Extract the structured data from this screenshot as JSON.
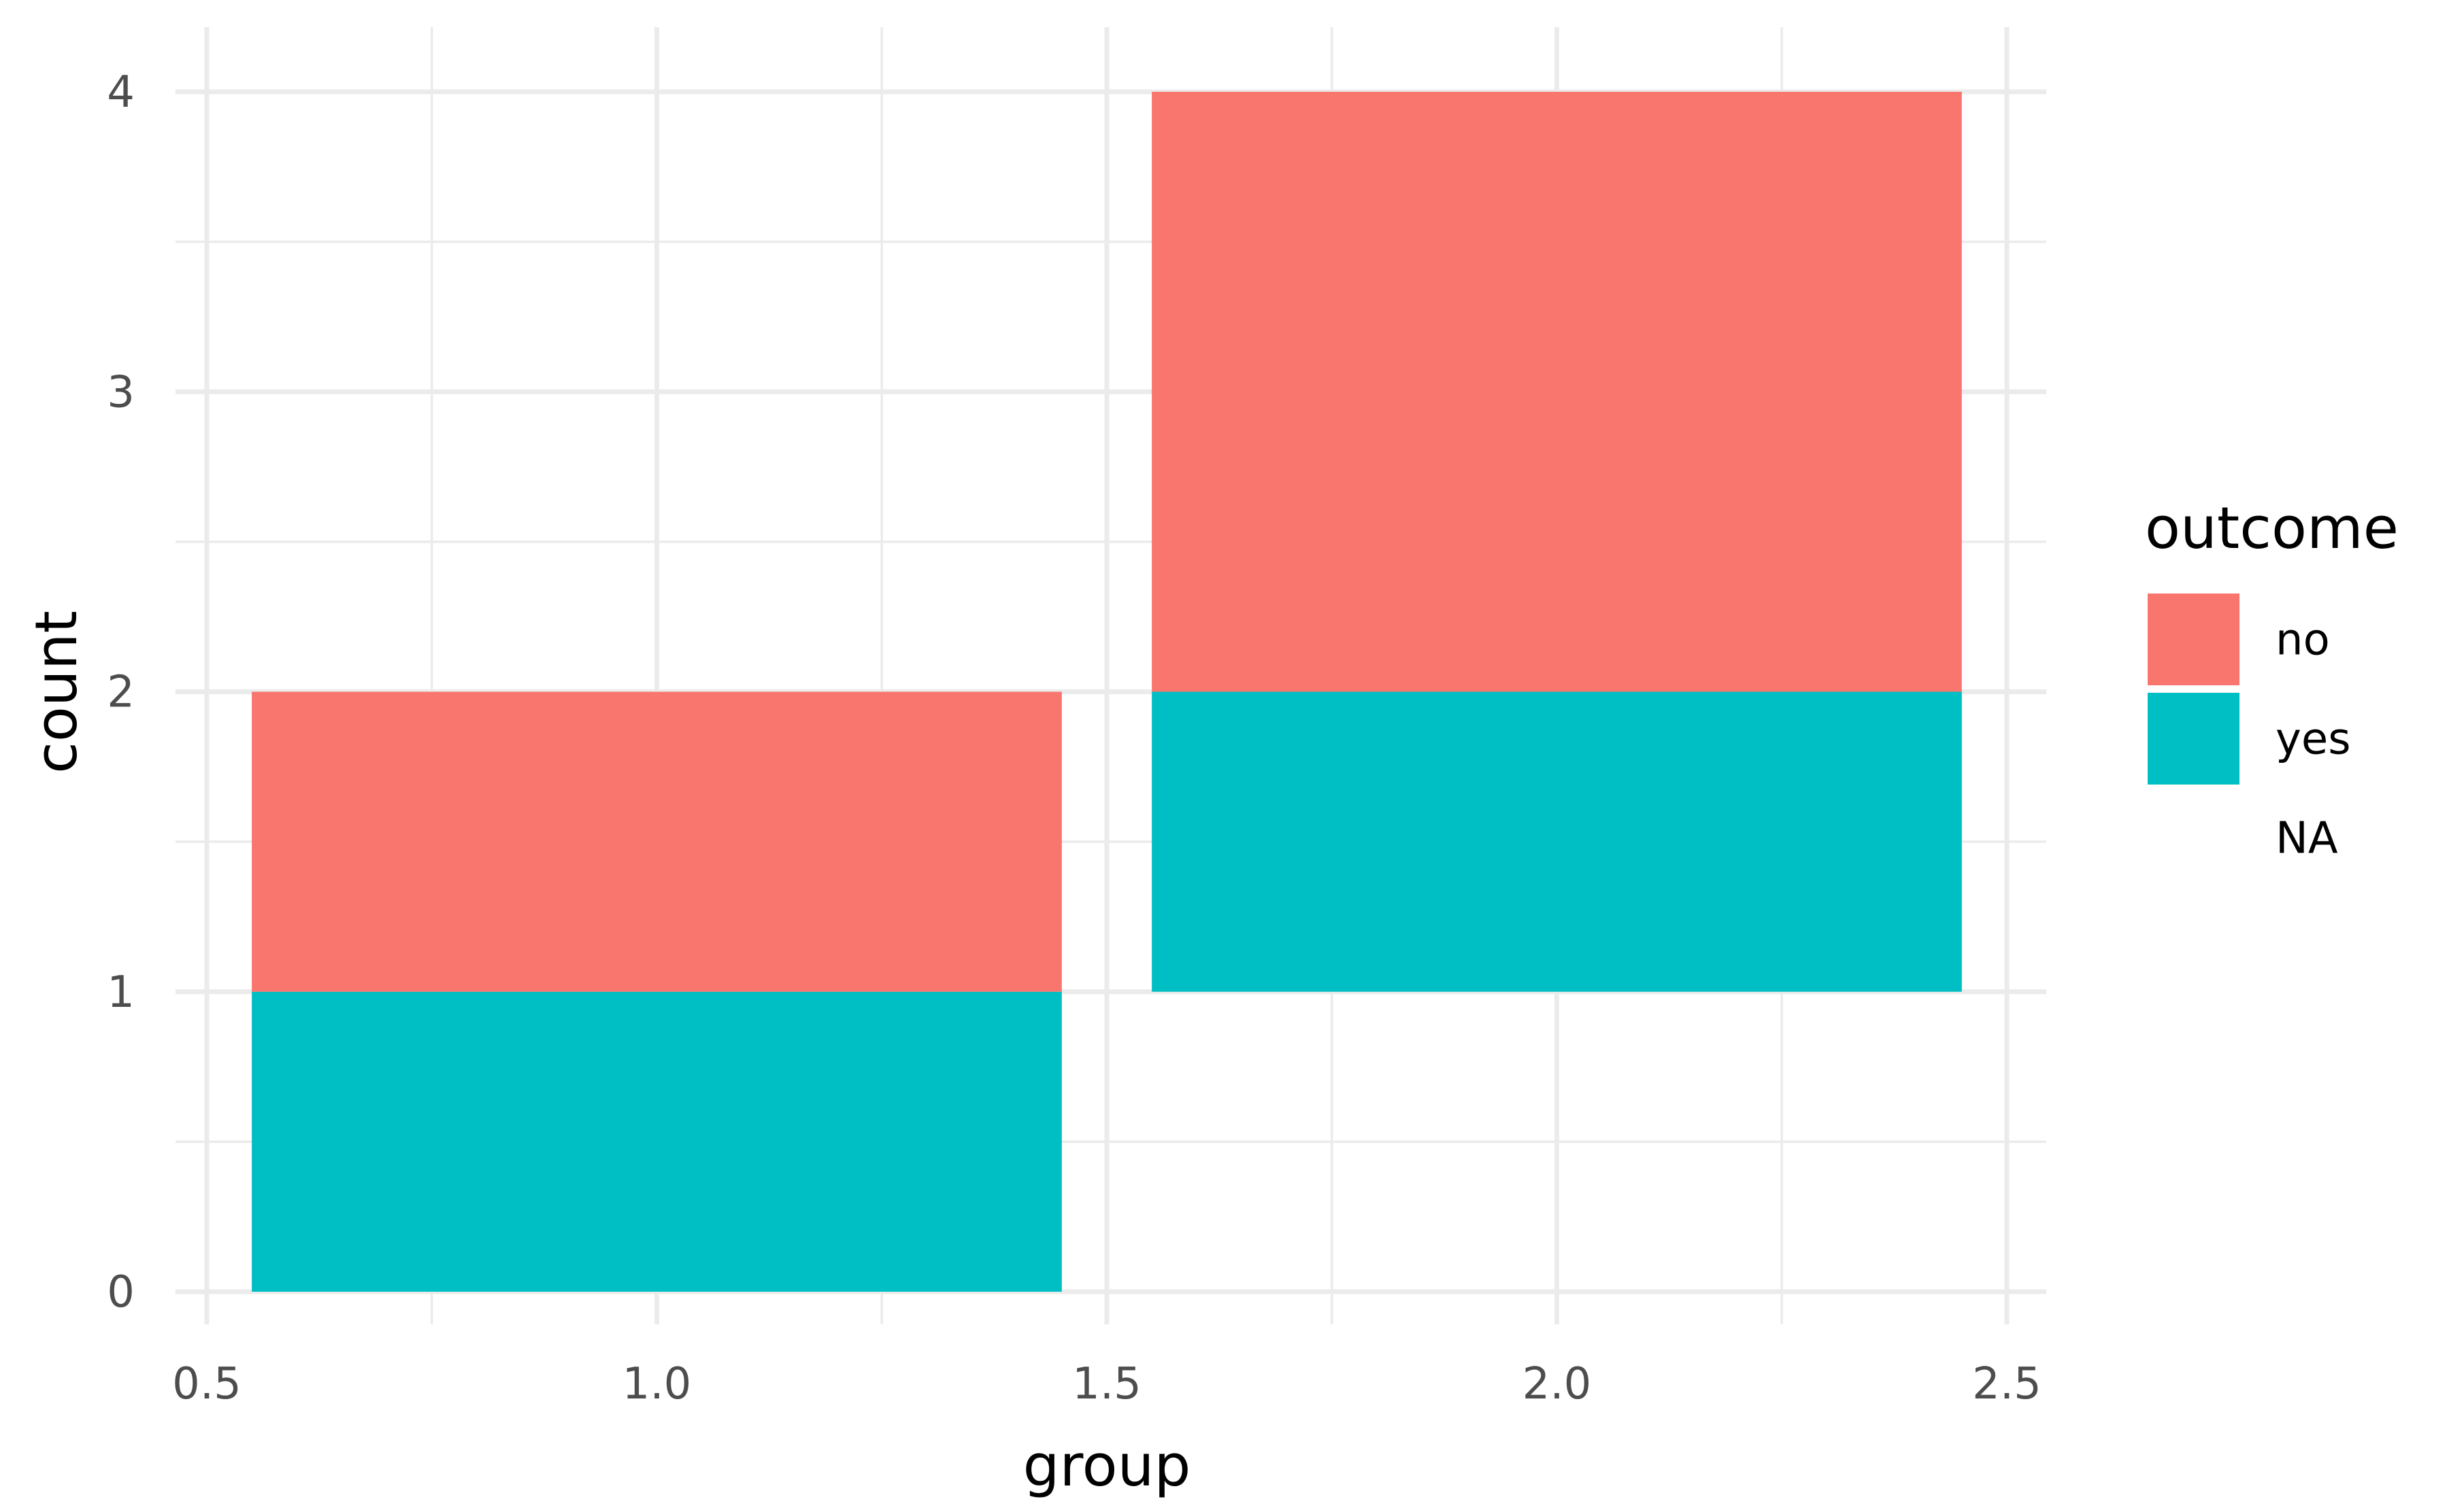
{
  "chart_data": {
    "type": "bar",
    "x_title": "group",
    "y_title": "count",
    "xlim": [
      0.5,
      2.5
    ],
    "ylim": [
      0,
      4
    ],
    "x_ticks": [
      "0.5",
      "1.0",
      "1.5",
      "2.0",
      "2.5"
    ],
    "y_ticks": [
      "0",
      "1",
      "2",
      "3",
      "4"
    ],
    "grid": true,
    "stacked": true,
    "bar_width": 0.9,
    "categories": [
      1,
      2
    ],
    "series": [
      {
        "name": "yes",
        "color": "#00BFC4",
        "segments": [
          [
            0,
            1
          ],
          [
            1,
            2
          ]
        ]
      },
      {
        "name": "no",
        "color": "#F8766D",
        "segments": [
          [
            1,
            2
          ],
          [
            2,
            4
          ]
        ]
      }
    ],
    "legend": {
      "title": "outcome",
      "position": "right",
      "items": [
        {
          "label": "no",
          "color": "#F8766D"
        },
        {
          "label": "yes",
          "color": "#00BFC4"
        },
        {
          "label": "NA",
          "color": ""
        }
      ]
    }
  }
}
